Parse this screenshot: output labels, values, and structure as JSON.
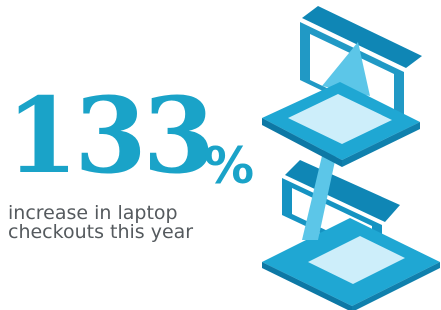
{
  "stat": {
    "number": "133",
    "unit": "%"
  },
  "caption": {
    "lines": [
      "increase in laptop",
      "checkouts this year"
    ]
  }
}
